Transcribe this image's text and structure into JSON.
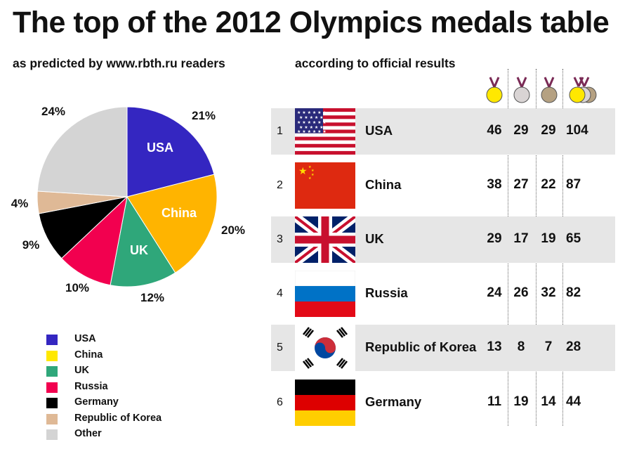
{
  "title": "The top of the 2012 Olympics medals table",
  "left_subtitle": "as predicted by www.rbth.ru readers",
  "right_subtitle": "according to official results",
  "chart_data": {
    "type": "pie",
    "title": "as predicted by www.rbth.ru readers",
    "slices": [
      {
        "name": "USA",
        "value": 21,
        "label": "21%",
        "inner_label": "USA",
        "color": "#3426c1"
      },
      {
        "name": "China",
        "value": 20,
        "label": "20%",
        "inner_label": "China",
        "color": "#ffb400"
      },
      {
        "name": "UK",
        "value": 12,
        "label": "12%",
        "inner_label": "UK",
        "color": "#2fa77a"
      },
      {
        "name": "Russia",
        "value": 10,
        "label": "10%",
        "inner_label": "",
        "color": "#f2004f"
      },
      {
        "name": "Germany",
        "value": 9,
        "label": "9%",
        "inner_label": "",
        "color": "#000000"
      },
      {
        "name": "Republic of Korea",
        "value": 4,
        "label": "4%",
        "inner_label": "",
        "color": "#dfb996"
      },
      {
        "name": "Other",
        "value": 24,
        "label": "24%",
        "inner_label": "",
        "color": "#d4d4d4"
      }
    ],
    "start_position": "12 o'clock, clockwise",
    "legend_placement": "bottom-left"
  },
  "legend": [
    {
      "label": "USA",
      "color": "#3426c1"
    },
    {
      "label": "China",
      "color": "#ffe800"
    },
    {
      "label": "UK",
      "color": "#2fa77a"
    },
    {
      "label": "Russia",
      "color": "#f2004f"
    },
    {
      "label": "Germany",
      "color": "#000000"
    },
    {
      "label": "Republic of Korea",
      "color": "#dfb996"
    },
    {
      "label": "Other",
      "color": "#d4d4d4"
    }
  ],
  "medal_icons": [
    {
      "name": "gold-medal-icon",
      "color": "#ffe800"
    },
    {
      "name": "silver-medal-icon",
      "color": "#d9d4d4"
    },
    {
      "name": "bronze-medal-icon",
      "color": "#b5a182"
    },
    {
      "name": "total-medals-icon",
      "color": "#ffe800"
    }
  ],
  "results": [
    {
      "rank": "1",
      "country": "USA",
      "flag": "usa-flag-icon",
      "gold": "46",
      "silver": "29",
      "bronze": "29",
      "total": "104"
    },
    {
      "rank": "2",
      "country": "China",
      "flag": "china-flag-icon",
      "gold": "38",
      "silver": "27",
      "bronze": "22",
      "total": "87"
    },
    {
      "rank": "3",
      "country": "UK",
      "flag": "uk-flag-icon",
      "gold": "29",
      "silver": "17",
      "bronze": "19",
      "total": "65"
    },
    {
      "rank": "4",
      "country": "Russia",
      "flag": "russia-flag-icon",
      "gold": "24",
      "silver": "26",
      "bronze": "32",
      "total": "82"
    },
    {
      "rank": "5",
      "country": "Republic of Korea",
      "flag": "korea-flag-icon",
      "gold": "13",
      "silver": "8",
      "bronze": "7",
      "total": "28"
    },
    {
      "rank": "6",
      "country": "Germany",
      "flag": "germany-flag-icon",
      "gold": "11",
      "silver": "19",
      "bronze": "14",
      "total": "44"
    }
  ]
}
